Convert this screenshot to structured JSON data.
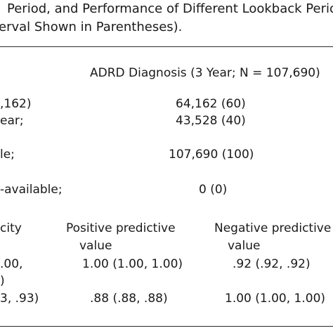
{
  "caption": {
    "line1": "Period, and Performance of Different Lookback Period",
    "line2": "erval Shown in Parentheses)."
  },
  "column_header": "ADRD Diagnosis (3 Year; N = 107,690)",
  "counts": [
    {
      "label": ",162)",
      "value": "64,162 (60)"
    },
    {
      "label": "ear;",
      "value": "43,528 (40)"
    },
    {
      "label": "le;",
      "value": "107,690 (100)"
    },
    {
      "label": "-available;",
      "value": "0 (0)"
    }
  ],
  "metrics_header": {
    "col1": "city",
    "col2_line1": "Positive predictive",
    "col2_line2": "value",
    "col3_line1": "Negative predictive",
    "col3_line2": "value"
  },
  "metrics_rows": [
    {
      "c1": ".00,",
      "c1b": ")",
      "c2": "1.00 (1.00, 1.00)",
      "c3": ".92 (.92, .92)"
    },
    {
      "c1": "3, .93)",
      "c2": ".88 (.88, .88)",
      "c3": "1.00 (1.00, 1.00)"
    }
  ]
}
